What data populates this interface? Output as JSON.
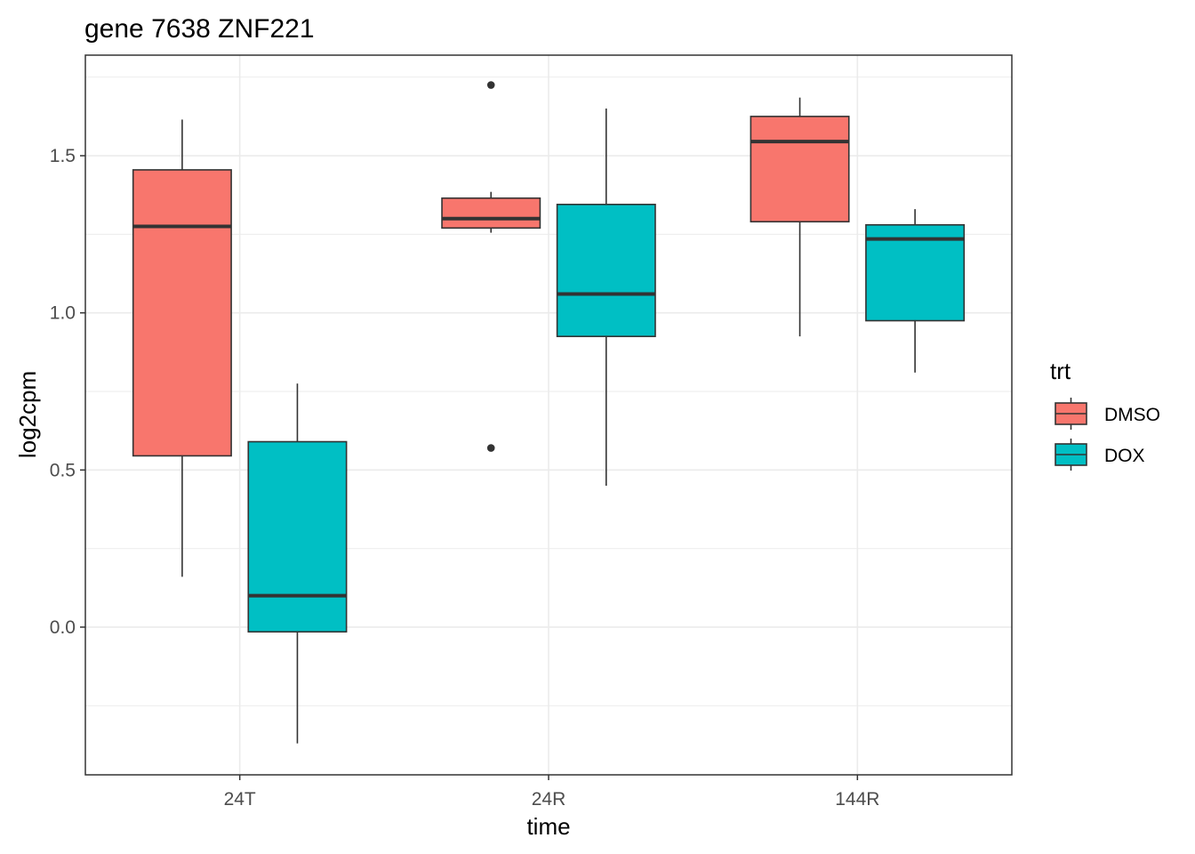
{
  "chart_data": {
    "type": "box",
    "title": "gene 7638 ZNF221",
    "xlabel": "time",
    "ylabel": "log2cpm",
    "categories": [
      "24T",
      "24R",
      "144R"
    ],
    "yticks": [
      "0.0",
      "0.5",
      "1.0",
      "1.5"
    ],
    "ylim": [
      -0.47,
      1.82
    ],
    "grid": true,
    "legend": {
      "title": "trt",
      "position": "right",
      "entries": [
        "DMSO",
        "DOX"
      ]
    },
    "series": [
      {
        "name": "DMSO",
        "color": "#F8766D",
        "boxes": [
          {
            "category": "24T",
            "lower_whisker": 0.16,
            "q1": 0.545,
            "median": 1.275,
            "q3": 1.455,
            "upper_whisker": 1.615,
            "outliers": []
          },
          {
            "category": "24R",
            "lower_whisker": 1.255,
            "q1": 1.27,
            "median": 1.3,
            "q3": 1.365,
            "upper_whisker": 1.385,
            "outliers": [
              0.57,
              1.725
            ]
          },
          {
            "category": "144R",
            "lower_whisker": 0.925,
            "q1": 1.29,
            "median": 1.545,
            "q3": 1.625,
            "upper_whisker": 1.685,
            "outliers": []
          }
        ]
      },
      {
        "name": "DOX",
        "color": "#00BFC4",
        "boxes": [
          {
            "category": "24T",
            "lower_whisker": -0.37,
            "q1": -0.015,
            "median": 0.1,
            "q3": 0.59,
            "upper_whisker": 0.775,
            "outliers": []
          },
          {
            "category": "24R",
            "lower_whisker": 0.45,
            "q1": 0.925,
            "median": 1.06,
            "q3": 1.345,
            "upper_whisker": 1.65,
            "outliers": []
          },
          {
            "category": "144R",
            "lower_whisker": 0.81,
            "q1": 0.975,
            "median": 1.235,
            "q3": 1.28,
            "upper_whisker": 1.33,
            "outliers": []
          }
        ]
      }
    ]
  }
}
